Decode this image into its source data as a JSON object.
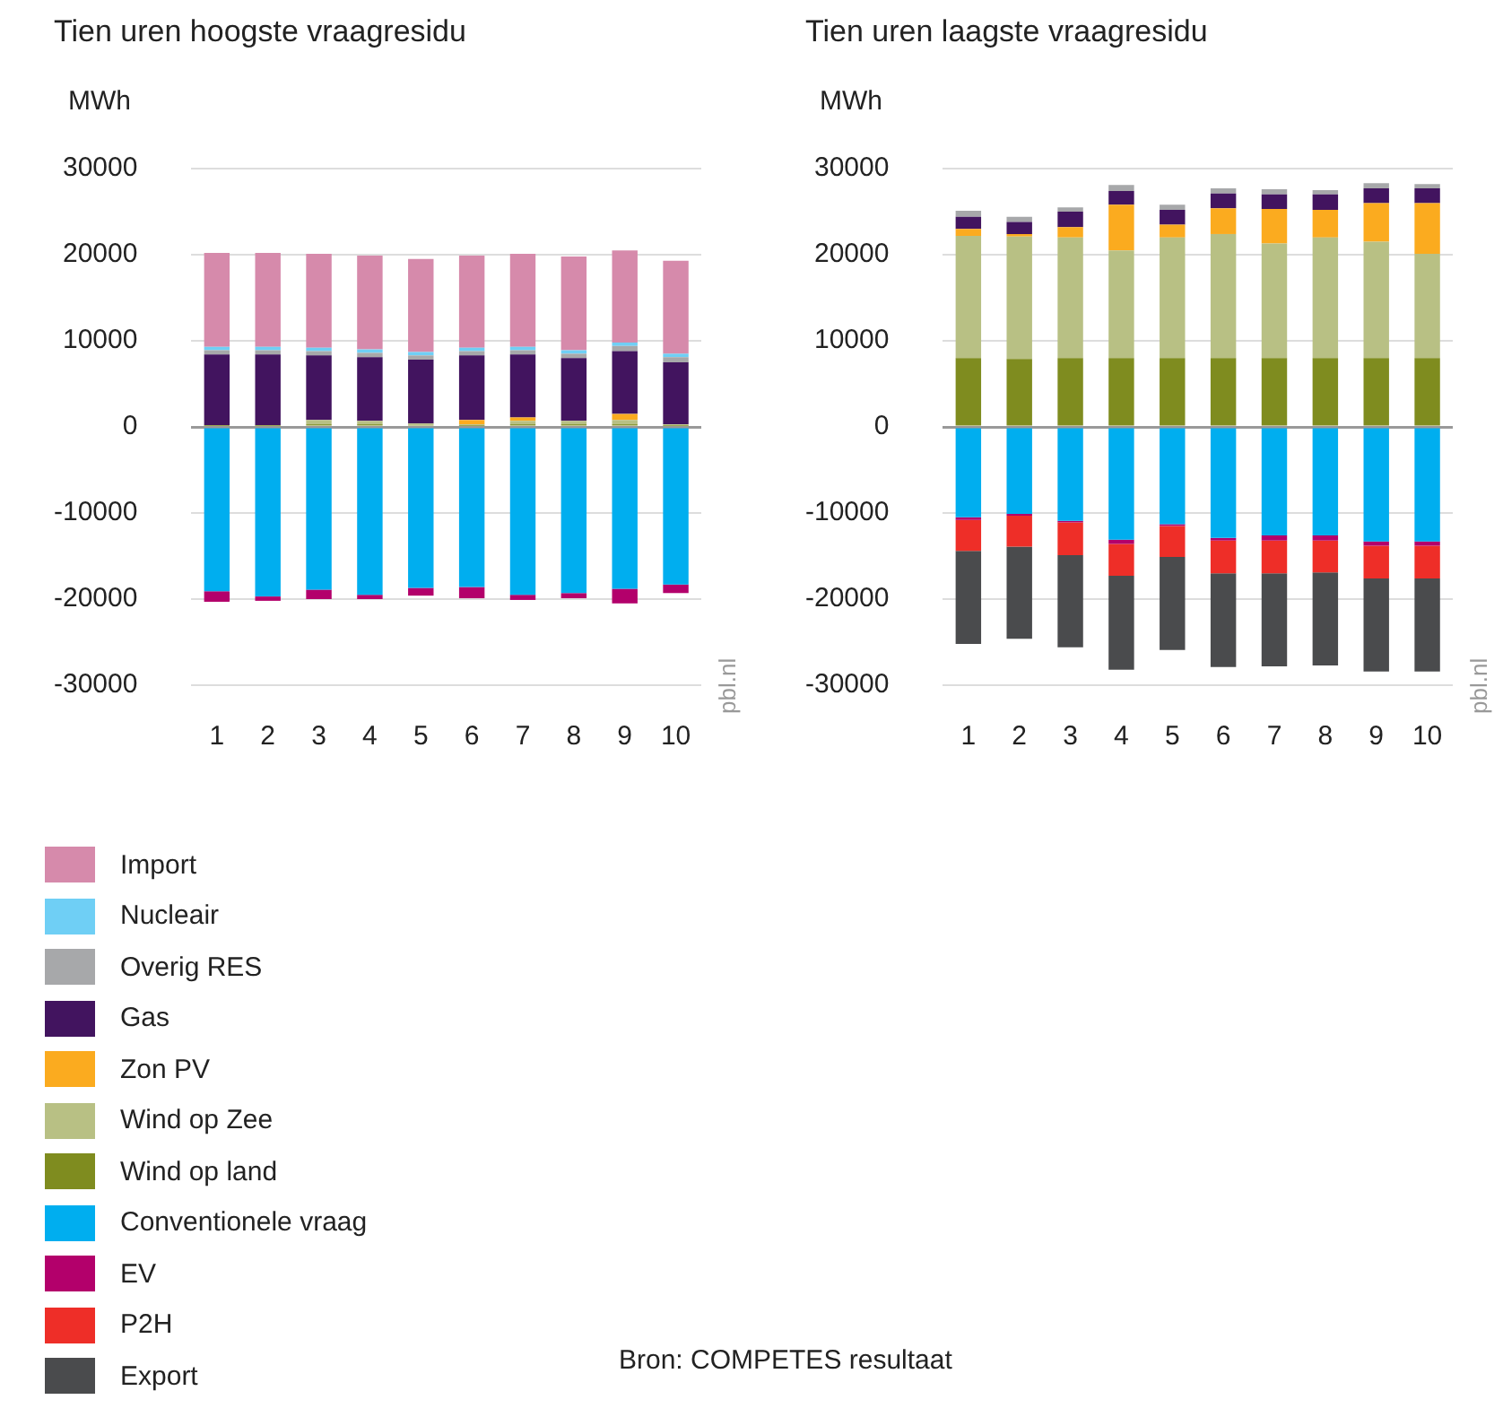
{
  "chart_data": [
    {
      "type": "bar",
      "title": "Tien uren hoogste vraagresidu",
      "ylabel": "MWh",
      "stacked": true,
      "legend": "bottom",
      "grid": "y",
      "categories": [
        "1",
        "2",
        "3",
        "4",
        "5",
        "6",
        "7",
        "8",
        "9",
        "10"
      ],
      "ylim": [
        -30000,
        30000
      ],
      "yticks": [
        -30000,
        -20000,
        -10000,
        0,
        10000,
        20000,
        30000
      ],
      "annotations": [
        "pbl.nl",
        "Bron: COMPETES resultaat"
      ],
      "series": [
        {
          "name": "Wind op land",
          "color": "#7f8c1f",
          "values": [
            100,
            100,
            300,
            300,
            200,
            100,
            300,
            300,
            300,
            100
          ]
        },
        {
          "name": "Wind op Zee",
          "color": "#b8c084",
          "values": [
            100,
            100,
            500,
            400,
            200,
            200,
            400,
            400,
            500,
            200
          ]
        },
        {
          "name": "Zon PV",
          "color": "#fbab1f",
          "values": [
            0,
            0,
            0,
            0,
            0,
            500,
            400,
            0,
            700,
            0
          ]
        },
        {
          "name": "Gas",
          "color": "#42145f",
          "values": [
            8200,
            8200,
            7500,
            7400,
            7400,
            7500,
            7300,
            7300,
            7300,
            7200
          ]
        },
        {
          "name": "Overig RES",
          "color": "#a7a8aa",
          "values": [
            500,
            500,
            500,
            500,
            500,
            500,
            500,
            500,
            600,
            600
          ]
        },
        {
          "name": "Nucleair",
          "color": "#6fcff5",
          "values": [
            400,
            400,
            400,
            400,
            400,
            400,
            400,
            400,
            400,
            400
          ]
        },
        {
          "name": "Import",
          "color": "#d68aab",
          "values": [
            10900,
            10900,
            10900,
            10900,
            10800,
            10700,
            10800,
            10900,
            10700,
            10800
          ]
        },
        {
          "name": "Conventionele vraag",
          "color": "#00aeef",
          "values": [
            -19100,
            -19700,
            -18900,
            -19500,
            -18700,
            -18600,
            -19500,
            -19300,
            -18800,
            -18300
          ]
        },
        {
          "name": "EV",
          "color": "#b3006b",
          "values": [
            -1200,
            -500,
            -1100,
            -500,
            -900,
            -1300,
            -600,
            -600,
            -1700,
            -1000
          ]
        },
        {
          "name": "P2H",
          "color": "#ee2e28",
          "values": [
            0,
            0,
            0,
            0,
            0,
            0,
            0,
            0,
            0,
            0
          ]
        },
        {
          "name": "Export",
          "color": "#4a4b4d",
          "values": [
            0,
            0,
            0,
            0,
            0,
            0,
            0,
            0,
            0,
            0
          ]
        }
      ]
    },
    {
      "type": "bar",
      "title": "Tien uren laagste vraagresidu",
      "ylabel": "MWh",
      "stacked": true,
      "grid": "y",
      "categories": [
        "1",
        "2",
        "3",
        "4",
        "5",
        "6",
        "7",
        "8",
        "9",
        "10"
      ],
      "ylim": [
        -30000,
        30000
      ],
      "yticks": [
        -30000,
        -20000,
        -10000,
        0,
        10000,
        20000,
        30000
      ],
      "annotations": [
        "pbl.nl"
      ],
      "series": [
        {
          "color": "#7f8c1f",
          "values": [
            8000,
            7900,
            8000,
            8000,
            8000,
            8000,
            8000,
            8000,
            8000,
            8000
          ]
        },
        {
          "color": "#b8c084",
          "values": [
            14200,
            14200,
            14000,
            12500,
            14000,
            14400,
            13300,
            14000,
            13500,
            12100
          ]
        },
        {
          "color": "#fbab1f",
          "values": [
            800,
            300,
            1200,
            5300,
            1500,
            3000,
            4000,
            3200,
            4500,
            5900
          ]
        },
        {
          "color": "#42145f",
          "values": [
            1400,
            1400,
            1800,
            1600,
            1700,
            1700,
            1700,
            1800,
            1700,
            1700
          ]
        },
        {
          "color": "#a7a8aa",
          "values": [
            700,
            600,
            500,
            700,
            600,
            600,
            600,
            500,
            600,
            500
          ]
        },
        {
          "color": "#6fcff5",
          "values": [
            0,
            0,
            0,
            0,
            0,
            0,
            0,
            0,
            0,
            0
          ]
        },
        {
          "color": "#d68aab",
          "values": [
            0,
            0,
            0,
            0,
            0,
            0,
            0,
            0,
            0,
            0
          ]
        },
        {
          "color": "#00aeef",
          "values": [
            -10500,
            -10100,
            -10900,
            -13100,
            -11300,
            -12900,
            -12600,
            -12600,
            -13300,
            -13300
          ]
        },
        {
          "color": "#b3006b",
          "values": [
            -300,
            -200,
            -200,
            -500,
            -200,
            -300,
            -600,
            -600,
            -500,
            -500
          ]
        },
        {
          "color": "#ee2e28",
          "values": [
            -3600,
            -3600,
            -3800,
            -3700,
            -3600,
            -3800,
            -3800,
            -3700,
            -3800,
            -3800
          ]
        },
        {
          "color": "#4a4b4d",
          "values": [
            -10800,
            -10700,
            -10700,
            -10900,
            -10800,
            -10900,
            -10800,
            -10800,
            -10800,
            -10800
          ]
        }
      ]
    }
  ]
}
